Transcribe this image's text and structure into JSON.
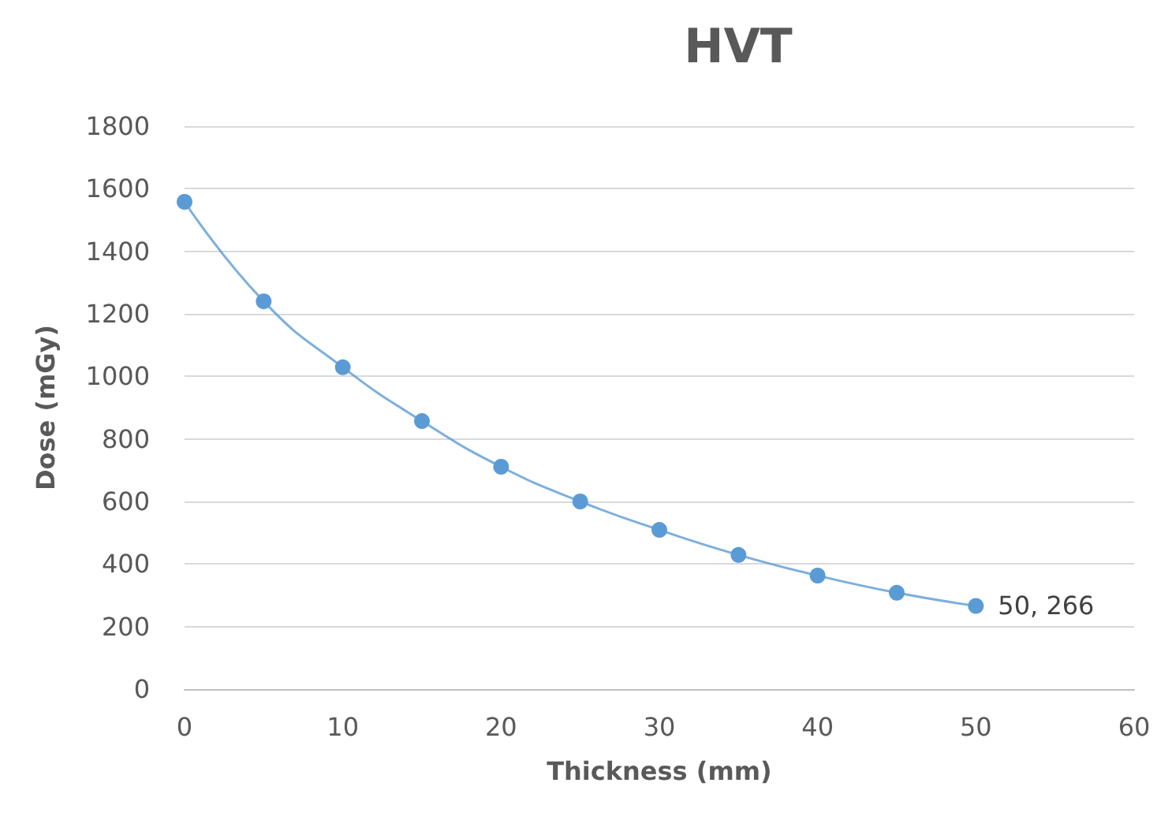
{
  "chart_data": {
    "type": "line",
    "title": "HVT",
    "xlabel": "Thickness (mm)",
    "ylabel": "Dose (mGy)",
    "x": [
      0,
      5,
      10,
      15,
      20,
      25,
      30,
      35,
      40,
      45,
      50
    ],
    "series": [
      {
        "color": "#5b9bd5",
        "values": [
          1558,
          1240,
          1029,
          857,
          711,
          600,
          509,
          429,
          363,
          308,
          266
        ]
      }
    ],
    "xlim": [
      0,
      60
    ],
    "xticks": [
      0,
      10,
      20,
      30,
      40,
      50,
      60
    ],
    "ylim": [
      0,
      1800
    ],
    "yticks": [
      0,
      200,
      400,
      600,
      800,
      1000,
      1200,
      1400,
      1600,
      1800
    ],
    "grid": "y",
    "marker": "circle",
    "line_style": "solid",
    "annotations": [
      {
        "text": "50, 266",
        "x": 50,
        "y": 266
      }
    ]
  }
}
